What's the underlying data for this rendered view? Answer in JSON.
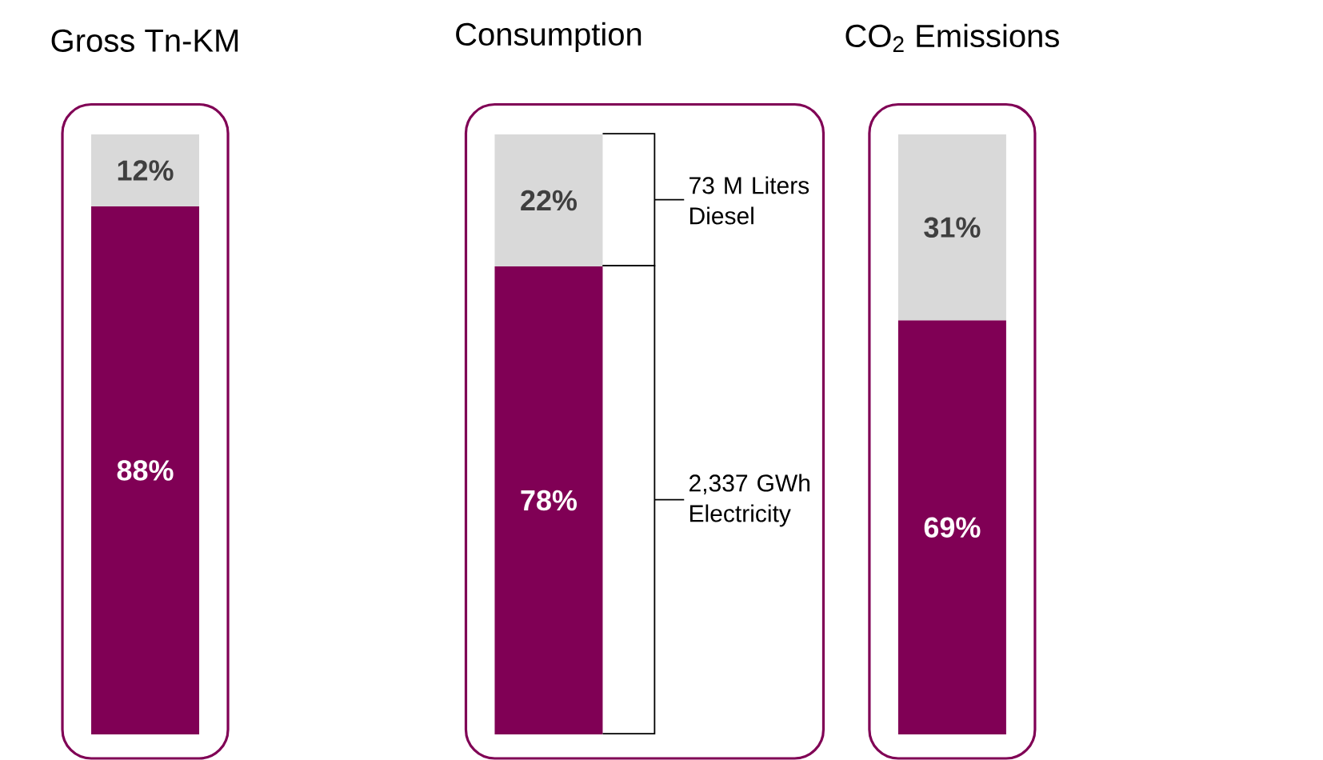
{
  "chart_data": {
    "type": "bar",
    "stacked": true,
    "categories": [
      "Gross Tn-KM",
      "Consumption",
      "CO$_{2}$ Emissions"
    ],
    "series": [
      {
        "color": "#800055",
        "values": [
          88,
          78,
          69
        ],
        "value_labels": [
          "88%",
          "78%",
          "69%"
        ]
      },
      {
        "color": "#d9d9d9",
        "values": [
          12,
          22,
          31
        ],
        "value_labels": [
          "12%",
          "22%",
          "31%"
        ]
      }
    ],
    "tick_labels": "x",
    "annotations": [
      "73 M Liters Diesel",
      "2,337 GWh Electricity"
    ]
  }
}
